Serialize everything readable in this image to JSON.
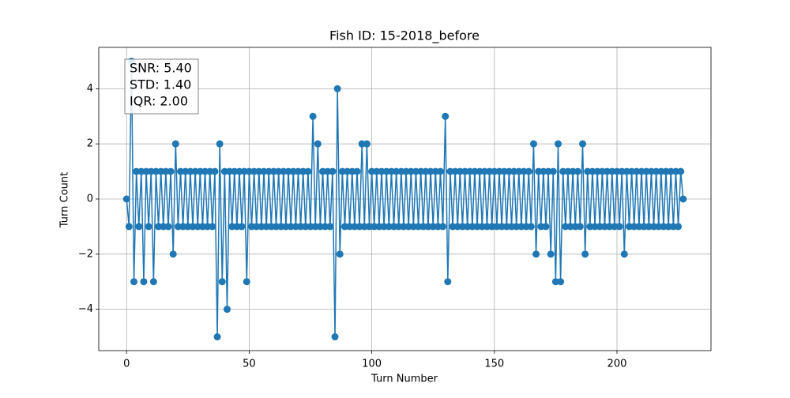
{
  "chart_data": {
    "type": "line",
    "title": "Fish ID: 15-2018_before",
    "xlabel": "Turn Number",
    "ylabel": "Turn Count",
    "annotations": [
      "SNR: 5.40",
      "STD: 1.40",
      "IQR: 2.00"
    ],
    "grid": true,
    "xlim": [
      -11.35,
      238.35
    ],
    "ylim": [
      -5.5,
      5.5
    ],
    "xticks": [
      0,
      50,
      100,
      150,
      200
    ],
    "yticks": [
      {
        "value": -4,
        "label": "−4"
      },
      {
        "value": -2,
        "label": "−2"
      },
      0,
      2,
      4
    ],
    "series": [
      {
        "color": "#1f77b4",
        "x": [
          0,
          1,
          2,
          3,
          4,
          5,
          6,
          7,
          8,
          9,
          10,
          11,
          12,
          13,
          14,
          15,
          16,
          17,
          18,
          19,
          20,
          21,
          22,
          23,
          24,
          25,
          26,
          27,
          28,
          29,
          30,
          31,
          32,
          33,
          34,
          35,
          36,
          37,
          38,
          39,
          40,
          41,
          42,
          43,
          44,
          45,
          46,
          47,
          48,
          49,
          50,
          51,
          52,
          53,
          54,
          55,
          56,
          57,
          58,
          59,
          60,
          61,
          62,
          63,
          64,
          65,
          66,
          67,
          68,
          69,
          70,
          71,
          72,
          73,
          74,
          75,
          76,
          77,
          78,
          79,
          80,
          81,
          82,
          83,
          84,
          85,
          86,
          87,
          88,
          89,
          90,
          91,
          92,
          93,
          94,
          95,
          96,
          97,
          98,
          99,
          100,
          101,
          102,
          103,
          104,
          105,
          106,
          107,
          108,
          109,
          110,
          111,
          112,
          113,
          114,
          115,
          116,
          117,
          118,
          119,
          120,
          121,
          122,
          123,
          124,
          125,
          126,
          127,
          128,
          129,
          130,
          131,
          132,
          133,
          134,
          135,
          136,
          137,
          138,
          139,
          140,
          141,
          142,
          143,
          144,
          145,
          146,
          147,
          148,
          149,
          150,
          151,
          152,
          153,
          154,
          155,
          156,
          157,
          158,
          159,
          160,
          161,
          162,
          163,
          164,
          165,
          166,
          167,
          168,
          169,
          170,
          171,
          172,
          173,
          174,
          175,
          176,
          177,
          178,
          179,
          180,
          181,
          182,
          183,
          184,
          185,
          186,
          187,
          188,
          189,
          190,
          191,
          192,
          193,
          194,
          195,
          196,
          197,
          198,
          199,
          200,
          201,
          202,
          203,
          204,
          205,
          206,
          207,
          208,
          209,
          210,
          211,
          212,
          213,
          214,
          215,
          216,
          217,
          218,
          219,
          220,
          221,
          222,
          223,
          224,
          225,
          226,
          227
        ],
        "values": [
          0,
          -1,
          5,
          -3,
          1,
          -1,
          1,
          -3,
          1,
          -1,
          1,
          -3,
          1,
          -1,
          1,
          -1,
          1,
          -1,
          1,
          -2,
          2,
          -1,
          1,
          -1,
          1,
          -1,
          1,
          -1,
          1,
          -1,
          1,
          -1,
          1,
          -1,
          1,
          -1,
          1,
          -5,
          2,
          -3,
          1,
          -4,
          1,
          -1,
          1,
          -1,
          1,
          -1,
          1,
          -3,
          1,
          -1,
          1,
          -1,
          1,
          -1,
          1,
          -1,
          1,
          -1,
          1,
          -1,
          1,
          -1,
          1,
          -1,
          1,
          -1,
          1,
          -1,
          1,
          -1,
          1,
          -1,
          1,
          -1,
          3,
          -1,
          2,
          -1,
          1,
          -1,
          1,
          -1,
          1,
          -5,
          4,
          -2,
          1,
          -1,
          1,
          -1,
          1,
          -1,
          1,
          -1,
          2,
          -1,
          2,
          -1,
          1,
          -1,
          1,
          -1,
          1,
          -1,
          1,
          -1,
          1,
          -1,
          1,
          -1,
          1,
          -1,
          1,
          -1,
          1,
          -1,
          1,
          -1,
          1,
          -1,
          1,
          -1,
          1,
          -1,
          1,
          -1,
          1,
          -1,
          3,
          -3,
          1,
          -1,
          1,
          -1,
          1,
          -1,
          1,
          -1,
          1,
          -1,
          1,
          -1,
          1,
          -1,
          1,
          -1,
          1,
          -1,
          1,
          -1,
          1,
          -1,
          1,
          -1,
          1,
          -1,
          1,
          -1,
          1,
          -1,
          1,
          -1,
          1,
          -1,
          2,
          -2,
          1,
          -1,
          1,
          -1,
          1,
          -2,
          1,
          -3,
          2,
          -3,
          1,
          -1,
          1,
          -1,
          1,
          -1,
          1,
          -1,
          2,
          -2,
          1,
          -1,
          1,
          -1,
          1,
          -1,
          1,
          -1,
          1,
          -1,
          1,
          -1,
          1,
          -1,
          1,
          -2,
          1,
          -1,
          1,
          -1,
          1,
          -1,
          1,
          -1,
          1,
          -1,
          1,
          -1,
          1,
          -1,
          1,
          -1,
          1,
          -1,
          1,
          -1,
          1,
          -1,
          1,
          0
        ]
      }
    ]
  }
}
